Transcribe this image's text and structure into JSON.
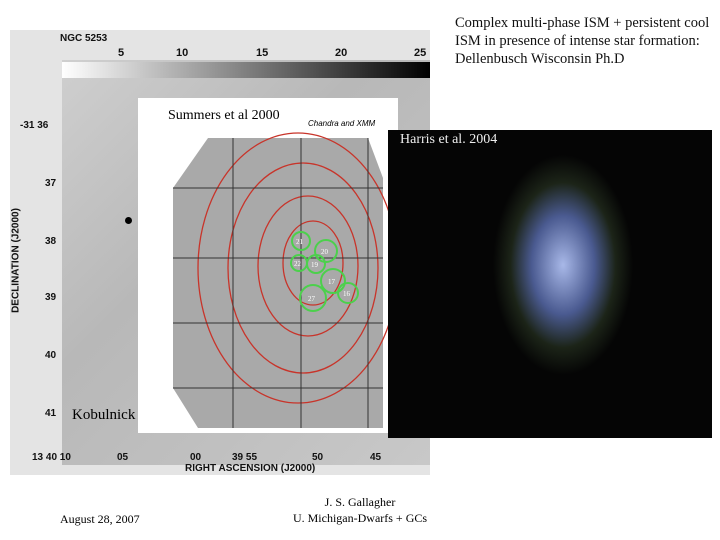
{
  "header": {
    "title": "Complex multi-phase ISM + persistent cool ISM in presence of intense star formation: Dellenbusch Wisconsin Ph.D"
  },
  "left_image": {
    "object": "NGC 5253",
    "scale": [
      "5",
      "10",
      "15",
      "20",
      "25"
    ],
    "dec_ticks": [
      "-31 36",
      "37",
      "38",
      "39",
      "40",
      "41"
    ],
    "dec_label": "DECLINATION (J2000)",
    "ra_ticks": [
      "13 40 10",
      "05",
      "00",
      "39 55",
      "50",
      "45"
    ],
    "ra_label": "RIGHT ASCENSION (J2000)",
    "credit": "Kobulnick"
  },
  "overlay_image": {
    "credit": "Summers et al 2000",
    "instrument": "Chandra and XMM",
    "sources": [
      "21",
      "20",
      "19",
      "17",
      "22",
      "27",
      "16"
    ]
  },
  "right_image": {
    "credit": "Harris et al. 2004"
  },
  "footer": {
    "date": "August 28, 2007",
    "author": "J. S. Gallagher",
    "affiliation": "U. Michigan-Dwarfs + GCs"
  }
}
